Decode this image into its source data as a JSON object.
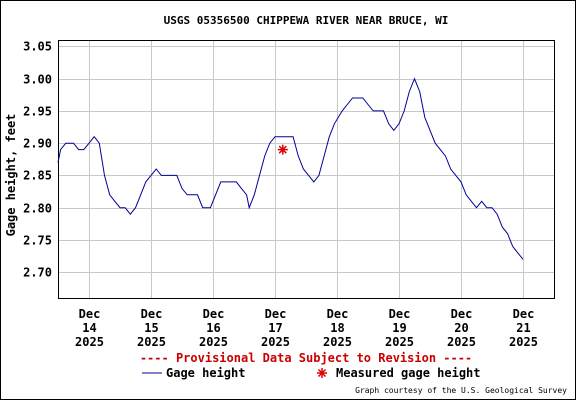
{
  "chart_data": {
    "type": "line",
    "title": "USGS 05356500 CHIPPEWA RIVER NEAR BRUCE, WI",
    "ylabel": "Gage height, feet",
    "xlabel": "",
    "ylim": [
      2.66,
      3.06
    ],
    "xlim": [
      "2025-12-13T12:00",
      "2025-12-21T12:00"
    ],
    "grid": true,
    "y_ticks": [
      "2.70",
      "2.75",
      "2.80",
      "2.85",
      "2.90",
      "2.95",
      "3.00",
      "3.05"
    ],
    "x_ticks": [
      {
        "date": "2025-12-14T00:00",
        "lines": [
          "Dec",
          "14",
          "2025"
        ]
      },
      {
        "date": "2025-12-15T00:00",
        "lines": [
          "Dec",
          "15",
          "2025"
        ]
      },
      {
        "date": "2025-12-16T00:00",
        "lines": [
          "Dec",
          "16",
          "2025"
        ]
      },
      {
        "date": "2025-12-17T00:00",
        "lines": [
          "Dec",
          "17",
          "2025"
        ]
      },
      {
        "date": "2025-12-18T00:00",
        "lines": [
          "Dec",
          "18",
          "2025"
        ]
      },
      {
        "date": "2025-12-19T00:00",
        "lines": [
          "Dec",
          "19",
          "2025"
        ]
      },
      {
        "date": "2025-12-20T00:00",
        "lines": [
          "Dec",
          "20",
          "2025"
        ]
      },
      {
        "date": "2025-12-21T00:00",
        "lines": [
          "Dec",
          "21",
          "2025"
        ]
      }
    ],
    "series": [
      {
        "name": "Gage height",
        "color": "#000099",
        "points": [
          [
            "2025-12-13T12:00",
            2.87
          ],
          [
            "2025-12-13T13:00",
            2.89
          ],
          [
            "2025-12-13T15:00",
            2.9
          ],
          [
            "2025-12-13T18:00",
            2.9
          ],
          [
            "2025-12-13T20:00",
            2.89
          ],
          [
            "2025-12-13T22:00",
            2.89
          ],
          [
            "2025-12-14T00:00",
            2.9
          ],
          [
            "2025-12-14T02:00",
            2.91
          ],
          [
            "2025-12-14T04:00",
            2.9
          ],
          [
            "2025-12-14T06:00",
            2.85
          ],
          [
            "2025-12-14T08:00",
            2.82
          ],
          [
            "2025-12-14T10:00",
            2.81
          ],
          [
            "2025-12-14T12:00",
            2.8
          ],
          [
            "2025-12-14T14:00",
            2.8
          ],
          [
            "2025-12-14T16:00",
            2.79
          ],
          [
            "2025-12-14T18:00",
            2.8
          ],
          [
            "2025-12-14T20:00",
            2.82
          ],
          [
            "2025-12-14T22:00",
            2.84
          ],
          [
            "2025-12-15T00:00",
            2.85
          ],
          [
            "2025-12-15T02:00",
            2.86
          ],
          [
            "2025-12-15T04:00",
            2.85
          ],
          [
            "2025-12-15T10:00",
            2.85
          ],
          [
            "2025-12-15T12:00",
            2.83
          ],
          [
            "2025-12-15T14:00",
            2.82
          ],
          [
            "2025-12-15T18:00",
            2.82
          ],
          [
            "2025-12-15T20:00",
            2.8
          ],
          [
            "2025-12-15T23:00",
            2.8
          ],
          [
            "2025-12-16T01:00",
            2.82
          ],
          [
            "2025-12-16T03:00",
            2.84
          ],
          [
            "2025-12-16T09:00",
            2.84
          ],
          [
            "2025-12-16T11:00",
            2.83
          ],
          [
            "2025-12-16T13:00",
            2.82
          ],
          [
            "2025-12-16T14:00",
            2.8
          ],
          [
            "2025-12-16T16:00",
            2.82
          ],
          [
            "2025-12-16T18:00",
            2.85
          ],
          [
            "2025-12-16T20:00",
            2.88
          ],
          [
            "2025-12-16T22:00",
            2.9
          ],
          [
            "2025-12-17T00:00",
            2.91
          ],
          [
            "2025-12-17T07:00",
            2.91
          ],
          [
            "2025-12-17T09:00",
            2.88
          ],
          [
            "2025-12-17T11:00",
            2.86
          ],
          [
            "2025-12-17T13:00",
            2.85
          ],
          [
            "2025-12-17T15:00",
            2.84
          ],
          [
            "2025-12-17T17:00",
            2.85
          ],
          [
            "2025-12-17T19:00",
            2.88
          ],
          [
            "2025-12-17T21:00",
            2.91
          ],
          [
            "2025-12-17T23:00",
            2.93
          ],
          [
            "2025-12-18T02:00",
            2.95
          ],
          [
            "2025-12-18T04:00",
            2.96
          ],
          [
            "2025-12-18T06:00",
            2.97
          ],
          [
            "2025-12-18T10:00",
            2.97
          ],
          [
            "2025-12-18T12:00",
            2.96
          ],
          [
            "2025-12-18T14:00",
            2.95
          ],
          [
            "2025-12-18T18:00",
            2.95
          ],
          [
            "2025-12-18T20:00",
            2.93
          ],
          [
            "2025-12-18T22:00",
            2.92
          ],
          [
            "2025-12-19T00:00",
            2.93
          ],
          [
            "2025-12-19T02:00",
            2.95
          ],
          [
            "2025-12-19T04:00",
            2.98
          ],
          [
            "2025-12-19T06:00",
            3.0
          ],
          [
            "2025-12-19T08:00",
            2.98
          ],
          [
            "2025-12-19T10:00",
            2.94
          ],
          [
            "2025-12-19T12:00",
            2.92
          ],
          [
            "2025-12-19T14:00",
            2.9
          ],
          [
            "2025-12-19T16:00",
            2.89
          ],
          [
            "2025-12-19T18:00",
            2.88
          ],
          [
            "2025-12-19T20:00",
            2.86
          ],
          [
            "2025-12-19T22:00",
            2.85
          ],
          [
            "2025-12-20T00:00",
            2.84
          ],
          [
            "2025-12-20T02:00",
            2.82
          ],
          [
            "2025-12-20T04:00",
            2.81
          ],
          [
            "2025-12-20T06:00",
            2.8
          ],
          [
            "2025-12-20T08:00",
            2.81
          ],
          [
            "2025-12-20T10:00",
            2.8
          ],
          [
            "2025-12-20T12:00",
            2.8
          ],
          [
            "2025-12-20T14:00",
            2.79
          ],
          [
            "2025-12-20T16:00",
            2.77
          ],
          [
            "2025-12-20T18:00",
            2.76
          ],
          [
            "2025-12-20T20:00",
            2.74
          ],
          [
            "2025-12-20T22:00",
            2.73
          ],
          [
            "2025-12-21T00:00",
            2.72
          ]
        ]
      }
    ],
    "measurements": [
      {
        "name": "Measured gage height",
        "color": "#dd0000",
        "x": "2025-12-17T03:00",
        "y": 2.89
      }
    ]
  },
  "notice": "---- Provisional Data Subject to Revision ----",
  "legend": {
    "gage_label": "Gage height",
    "measured_label": "Measured gage height"
  },
  "credit": "Graph courtesy of the U.S. Geological Survey"
}
